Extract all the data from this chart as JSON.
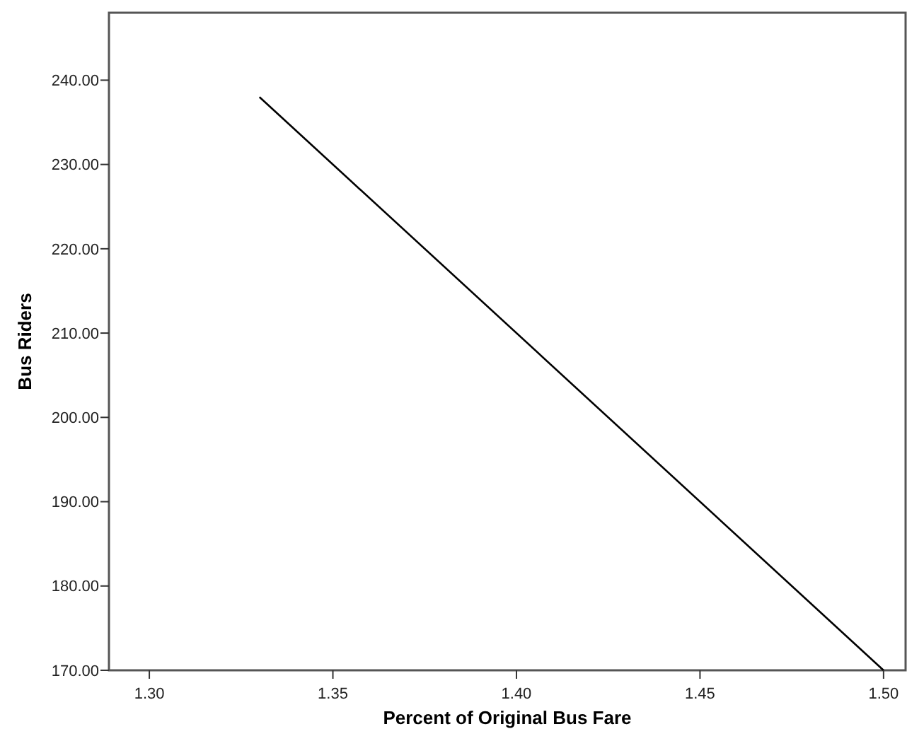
{
  "chart_data": {
    "type": "line",
    "xlabel": "Percent of Original Bus Fare",
    "ylabel": "Bus Riders",
    "x": [
      1.33,
      1.5
    ],
    "series": [
      {
        "color": "#000000",
        "values": [
          238,
          170
        ]
      }
    ],
    "xlim": [
      1.289,
      1.506
    ],
    "ylim": [
      170,
      248
    ],
    "xticks": [
      {
        "value": 1.3,
        "label": "1.30"
      },
      {
        "value": 1.35,
        "label": "1.35"
      },
      {
        "value": 1.4,
        "label": "1.40"
      },
      {
        "value": 1.45,
        "label": "1.45"
      },
      {
        "value": 1.5,
        "label": "1.50"
      }
    ],
    "yticks": [
      {
        "value": 170,
        "label": "170.00"
      },
      {
        "value": 180,
        "label": "180.00"
      },
      {
        "value": 190,
        "label": "190.00"
      },
      {
        "value": 200,
        "label": "200.00"
      },
      {
        "value": 210,
        "label": "210.00"
      },
      {
        "value": 220,
        "label": "220.00"
      },
      {
        "value": 230,
        "label": "230.00"
      },
      {
        "value": 240,
        "label": "240.00"
      }
    ],
    "grid": false,
    "marker": "none",
    "line_style": "solid"
  }
}
